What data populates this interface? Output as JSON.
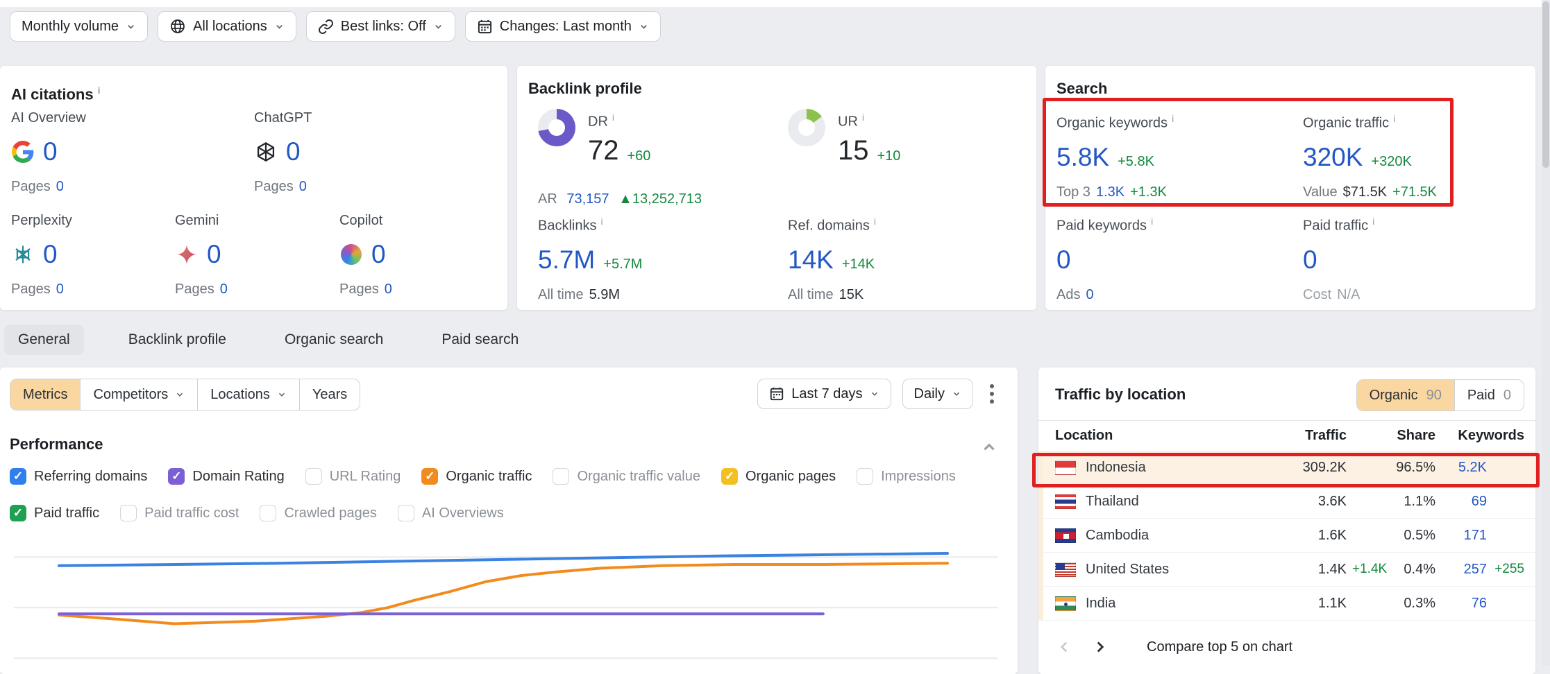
{
  "colors": {
    "accent_blue": "#2257c5",
    "positive_green": "#15883e",
    "annotation_red": "#e01f1f",
    "active_tan": "#fad7a1",
    "highlight_row": "#fcf1e2",
    "donut_purple": "#6c59c9",
    "donut_green": "#8bc34a"
  },
  "toolbar": {
    "filters": [
      {
        "label": "Monthly volume",
        "icon": "none"
      },
      {
        "label": "All locations",
        "icon": "globe"
      },
      {
        "label": "Best links: Off",
        "icon": "link"
      },
      {
        "label": "Changes: Last month",
        "icon": "calendar"
      }
    ]
  },
  "ai_citations": {
    "title": "AI citations",
    "metrics": [
      {
        "name": "AI Overview",
        "icon": "google",
        "value": "0",
        "sub_label": "Pages",
        "sub_value": "0"
      },
      {
        "name": "ChatGPT",
        "icon": "chatgpt",
        "value": "0",
        "sub_label": "Pages",
        "sub_value": "0"
      },
      {
        "name": "Perplexity",
        "icon": "perplexity",
        "value": "0",
        "sub_label": "Pages",
        "sub_value": "0"
      },
      {
        "name": "Gemini",
        "icon": "gemini",
        "value": "0",
        "sub_label": "Pages",
        "sub_value": "0"
      },
      {
        "name": "Copilot",
        "icon": "copilot",
        "value": "0",
        "sub_label": "Pages",
        "sub_value": "0"
      }
    ]
  },
  "backlink_profile": {
    "title": "Backlink profile",
    "dr": {
      "label": "DR",
      "value": "72",
      "diff": "+60",
      "percent": 72,
      "sub_label": "AR",
      "sub_value": "73,157",
      "sub_diff": "▲13,252,713"
    },
    "ur": {
      "label": "UR",
      "value": "15",
      "diff": "+10",
      "percent": 15
    },
    "backlinks": {
      "label": "Backlinks",
      "value": "5.7M",
      "diff": "+5.7M",
      "sub_label": "All time",
      "sub_value": "5.9M"
    },
    "ref_domains": {
      "label": "Ref. domains",
      "value": "14K",
      "diff": "+14K",
      "sub_label": "All time",
      "sub_value": "15K"
    }
  },
  "search": {
    "title": "Search",
    "organic_keywords": {
      "label": "Organic keywords",
      "value": "5.8K",
      "diff": "+5.8K",
      "sub_label": "Top 3",
      "sub_value": "1.3K",
      "sub_diff": "+1.3K"
    },
    "organic_traffic": {
      "label": "Organic traffic",
      "value": "320K",
      "diff": "+320K",
      "sub_label": "Value",
      "sub_value": "$71.5K",
      "sub_diff": "+71.5K"
    },
    "paid_keywords": {
      "label": "Paid keywords",
      "value": "0",
      "sub_label": "Ads",
      "sub_value": "0"
    },
    "paid_traffic": {
      "label": "Paid traffic",
      "value": "0",
      "sub_label": "Cost",
      "sub_value": "N/A"
    }
  },
  "tabs": {
    "items": [
      {
        "label": "General",
        "active": true
      },
      {
        "label": "Backlink profile",
        "active": false
      },
      {
        "label": "Organic search",
        "active": false
      },
      {
        "label": "Paid search",
        "active": false
      }
    ]
  },
  "chart_panel": {
    "view_buttons": [
      {
        "label": "Metrics",
        "active": true,
        "dropdown": false
      },
      {
        "label": "Competitors",
        "active": false,
        "dropdown": true
      },
      {
        "label": "Locations",
        "active": false,
        "dropdown": true
      },
      {
        "label": "Years",
        "active": false,
        "dropdown": false
      }
    ],
    "date_range_button": "Last 7 days",
    "granularity_button": "Daily",
    "section_title": "Performance",
    "checkboxes": [
      {
        "label": "Referring domains",
        "checked": true,
        "color": "#2f80ed"
      },
      {
        "label": "Domain Rating",
        "checked": true,
        "color": "#7a5fd6"
      },
      {
        "label": "URL Rating",
        "checked": false,
        "color": ""
      },
      {
        "label": "Organic traffic",
        "checked": true,
        "color": "#f28b1e"
      },
      {
        "label": "Organic traffic value",
        "checked": false,
        "color": ""
      },
      {
        "label": "Organic pages",
        "checked": true,
        "color": "#f2c021"
      },
      {
        "label": "Impressions",
        "checked": false,
        "color": ""
      },
      {
        "label": "Paid traffic",
        "checked": true,
        "color": "#1fa052"
      },
      {
        "label": "Paid traffic cost",
        "checked": false,
        "color": ""
      },
      {
        "label": "Crawled pages",
        "checked": false,
        "color": ""
      },
      {
        "label": "AI Overviews",
        "checked": false,
        "color": ""
      }
    ]
  },
  "chart_data": {
    "type": "line",
    "title": "Performance",
    "x_axis_labels_visible": false,
    "y_axis_labels_visible": false,
    "gridlines_pct": [
      12,
      53,
      94
    ],
    "series": [
      {
        "name": "Referring domains",
        "color": "#3b82e0",
        "points_pct": [
          [
            0,
            19
          ],
          [
            25,
            17
          ],
          [
            50,
            14
          ],
          [
            75,
            11
          ],
          [
            100,
            9
          ]
        ]
      },
      {
        "name": "Organic traffic",
        "color": "#f28b1e",
        "points_pct": [
          [
            0,
            59
          ],
          [
            6,
            62
          ],
          [
            13,
            66
          ],
          [
            22,
            64
          ],
          [
            30,
            60
          ],
          [
            34,
            57
          ],
          [
            37,
            53
          ],
          [
            40,
            47
          ],
          [
            44,
            40
          ],
          [
            48,
            32
          ],
          [
            52,
            27
          ],
          [
            56,
            24
          ],
          [
            61,
            21
          ],
          [
            68,
            19
          ],
          [
            76,
            18
          ],
          [
            86,
            18
          ],
          [
            100,
            17
          ]
        ]
      },
      {
        "name": "Domain Rating",
        "color": "#7b61d6",
        "points_pct": [
          [
            0,
            58
          ],
          [
            86,
            58
          ]
        ]
      }
    ]
  },
  "traffic_by_location": {
    "title": "Traffic by location",
    "toggle": [
      {
        "label": "Organic",
        "count": "90",
        "active": true
      },
      {
        "label": "Paid",
        "count": "0",
        "active": false
      }
    ],
    "columns": {
      "location": "Location",
      "traffic": "Traffic",
      "share": "Share",
      "keywords": "Keywords"
    },
    "rows": [
      {
        "flag": "id",
        "location": "Indonesia",
        "traffic": "309.2K",
        "traffic_diff": "",
        "share": "96.5%",
        "keywords": "5.2K",
        "keywords_diff": "",
        "highlighted": true
      },
      {
        "flag": "th",
        "location": "Thailand",
        "traffic": "3.6K",
        "traffic_diff": "",
        "share": "1.1%",
        "keywords": "69",
        "keywords_diff": "",
        "highlighted": false
      },
      {
        "flag": "kh",
        "location": "Cambodia",
        "traffic": "1.6K",
        "traffic_diff": "",
        "share": "0.5%",
        "keywords": "171",
        "keywords_diff": "",
        "highlighted": false
      },
      {
        "flag": "us",
        "location": "United States",
        "traffic": "1.4K",
        "traffic_diff": "+1.4K",
        "share": "0.4%",
        "keywords": "257",
        "keywords_diff": "+255",
        "highlighted": false
      },
      {
        "flag": "in",
        "location": "India",
        "traffic": "1.1K",
        "traffic_diff": "",
        "share": "0.3%",
        "keywords": "76",
        "keywords_diff": "",
        "highlighted": false
      }
    ],
    "footer_action": "Compare top 5 on chart"
  }
}
